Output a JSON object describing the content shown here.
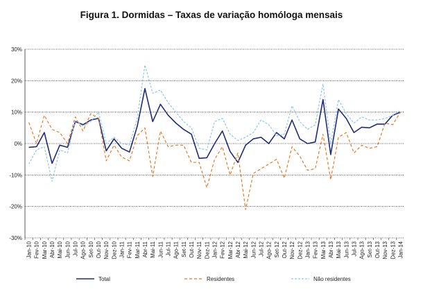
{
  "chart_data": {
    "type": "line",
    "title": "Figura 1. Dormidas – Taxas de variação homóloga mensais",
    "xlabel": "",
    "ylabel": "",
    "ylim": [
      -30,
      30
    ],
    "yticks": [
      "30%",
      "20%",
      "10%",
      "0%",
      "-10%",
      "-20%",
      "-30%"
    ],
    "grid": "horizontal dotted",
    "legend_position": "bottom",
    "categories": [
      "Jan-10",
      "Fev-10",
      "Mar-10",
      "Abr-10",
      "Mai-10",
      "Jun-10",
      "Jul-10",
      "Ago-10",
      "Set-10",
      "Out-10",
      "Nov-10",
      "Dez-10",
      "Jan-11",
      "Fev-11",
      "Mar-11",
      "Abr-11",
      "Mai-11",
      "Jun-11",
      "Jul-11",
      "Ago-11",
      "Set-11",
      "Out-11",
      "Nov-11",
      "Dez-11",
      "Jan-12",
      "Fev-12",
      "Mar-12",
      "Abr-12",
      "Mai-12",
      "Jun-12",
      "Jul-12",
      "Ago-12",
      "Set-12",
      "Out-12",
      "Nov-12",
      "Dez-12",
      "Jan-13",
      "Fev-13",
      "Mar-13",
      "Abr-13",
      "Mai-13",
      "Jun-13",
      "Jul-13",
      "Ago-13",
      "Set-13",
      "Out-13",
      "Nov-13",
      "Dez-13",
      "Jan-14"
    ],
    "series": [
      {
        "name": "Total",
        "color": "#1f2a78",
        "dash": "solid",
        "values": [
          -1.2,
          -1,
          3.5,
          -6.3,
          -0.5,
          -1.2,
          7,
          6,
          7.5,
          8,
          -2.3,
          1.5,
          -1.5,
          -2.7,
          5.5,
          17.5,
          7,
          12.5,
          9,
          6.5,
          4.5,
          3,
          -4.7,
          -4.5,
          0,
          4,
          -2.5,
          -6,
          -0.5,
          1.5,
          2,
          0,
          3.5,
          1.5,
          7.5,
          1.5,
          0,
          0.5,
          14,
          -3.5,
          11,
          8,
          3.5,
          5.2,
          5,
          6.2,
          6.2,
          9,
          10
        ]
      },
      {
        "name": "Residentes",
        "color": "#e87722",
        "dash": "4,3",
        "values": [
          6.7,
          0,
          9,
          4.5,
          3.5,
          0,
          8.5,
          4,
          9.5,
          8,
          -5.5,
          -0.5,
          -4.3,
          -5.5,
          2.5,
          5,
          -10.5,
          4,
          -1,
          -0.5,
          -0.5,
          -6,
          -6,
          -14,
          -5,
          -1,
          -10,
          -3,
          -21,
          -9.5,
          -8,
          -6.5,
          -5,
          -11,
          -1,
          -4,
          -8.5,
          -8,
          3,
          -11.5,
          2,
          3.5,
          -3,
          -0.5,
          -1.5,
          -1,
          6.5,
          6,
          10
        ]
      },
      {
        "name": "Não residentes",
        "color": "#8ec6e8",
        "dash": "3,2",
        "values": [
          -6.5,
          -2,
          -1,
          -12,
          -2,
          -3,
          7.5,
          5.5,
          7,
          10,
          0,
          2,
          0,
          -0.5,
          8,
          25,
          16,
          17,
          13,
          10,
          7,
          5,
          -1.5,
          -2,
          7,
          8,
          3,
          1,
          2,
          3.5,
          7.5,
          6,
          2.5,
          3,
          12,
          7,
          4.5,
          6,
          19,
          0,
          14,
          9.5,
          6.5,
          8.5,
          7.5,
          7.5,
          8,
          9,
          10.5
        ]
      }
    ]
  }
}
